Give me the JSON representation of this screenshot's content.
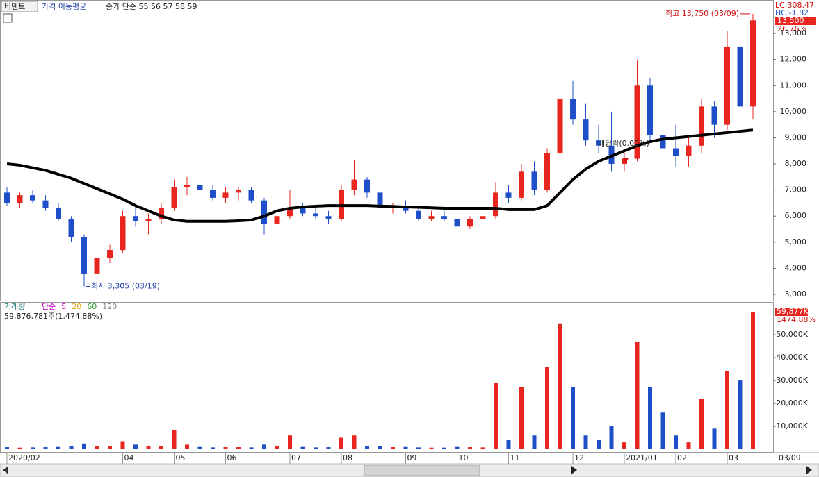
{
  "chart_data": [
    {
      "type": "candlestick",
      "name": "비덴트",
      "overlay_label": "가격 이동평균",
      "ma_label": "종가 단순 55 56 57 58 59",
      "categories": [
        "2020/02",
        null,
        null,
        null,
        null,
        null,
        null,
        null,
        null,
        "04",
        null,
        null,
        null,
        "05",
        null,
        null,
        null,
        "06",
        null,
        null,
        null,
        null,
        "07",
        null,
        null,
        null,
        "08",
        null,
        null,
        null,
        null,
        "09",
        null,
        null,
        null,
        "10",
        null,
        null,
        null,
        "11",
        null,
        null,
        null,
        null,
        "12",
        null,
        null,
        null,
        "2021/01",
        null,
        null,
        null,
        "02",
        null,
        null,
        null,
        "03",
        null,
        null
      ],
      "open": [
        6900,
        6500,
        6800,
        6600,
        6300,
        5900,
        5200,
        3800,
        4400,
        4700,
        6000,
        5800,
        5900,
        6300,
        7100,
        7200,
        7000,
        6700,
        6900,
        7000,
        6600,
        5700,
        6000,
        6300,
        6100,
        6000,
        5900,
        7000,
        7400,
        6900,
        6300,
        6400,
        6200,
        5900,
        6000,
        5900,
        5600,
        5900,
        6000,
        6900,
        6700,
        7700,
        7000,
        8400,
        10500,
        9700,
        8900,
        8700,
        8000,
        8200,
        11000,
        9100,
        8600,
        8300,
        8700,
        10200,
        9500,
        12500,
        10200
      ],
      "high": [
        7100,
        6900,
        7000,
        6800,
        6500,
        6000,
        5300,
        4600,
        4900,
        6200,
        6400,
        6100,
        6500,
        7400,
        7500,
        7400,
        7200,
        7100,
        7100,
        7100,
        6700,
        6200,
        7000,
        6500,
        6300,
        6200,
        7200,
        8150,
        7500,
        7000,
        6500,
        6600,
        6300,
        6200,
        6200,
        6000,
        6000,
        6100,
        7300,
        7200,
        8000,
        8100,
        8600,
        11500,
        11200,
        10300,
        9500,
        10000,
        8400,
        12000,
        11300,
        10300,
        9500,
        9100,
        10500,
        10400,
        13100,
        12800,
        13750
      ],
      "low": [
        6400,
        6300,
        6500,
        6200,
        5800,
        5000,
        3305,
        3600,
        4200,
        4600,
        5600,
        5300,
        5700,
        6200,
        6800,
        6800,
        6600,
        6500,
        6600,
        6500,
        5300,
        5600,
        5900,
        6000,
        5900,
        5700,
        5800,
        6800,
        6700,
        6100,
        6100,
        6100,
        5800,
        5800,
        5800,
        5250,
        5500,
        5800,
        5900,
        6500,
        6600,
        6800,
        6900,
        8300,
        9500,
        8700,
        8400,
        7700,
        7700,
        8100,
        8900,
        8200,
        7900,
        7900,
        8400,
        9000,
        9300,
        9900,
        9700
      ],
      "close": [
        6500,
        6800,
        6600,
        6300,
        5900,
        5200,
        3800,
        4400,
        4700,
        6000,
        5800,
        5900,
        6300,
        7100,
        7200,
        7000,
        6700,
        6900,
        7000,
        6600,
        5700,
        6000,
        6300,
        6100,
        6000,
        5900,
        7000,
        7400,
        6900,
        6300,
        6400,
        6200,
        5900,
        6000,
        5900,
        5600,
        5900,
        6000,
        6900,
        6700,
        7700,
        7000,
        8400,
        10500,
        9700,
        8900,
        8700,
        8000,
        8200,
        11000,
        9100,
        8600,
        8300,
        8700,
        10200,
        9500,
        12500,
        10200,
        13500
      ],
      "ma_values": [
        8000,
        7950,
        7850,
        7750,
        7600,
        7450,
        7250,
        7050,
        6850,
        6650,
        6400,
        6200,
        6000,
        5850,
        5800,
        5800,
        5800,
        5800,
        5820,
        5850,
        6000,
        6200,
        6300,
        6350,
        6380,
        6400,
        6400,
        6400,
        6400,
        6380,
        6370,
        6350,
        6340,
        6320,
        6300,
        6300,
        6300,
        6300,
        6300,
        6250,
        6250,
        6250,
        6400,
        6900,
        7400,
        7800,
        8100,
        8300,
        8500,
        8700,
        8850,
        8950,
        9000,
        9050,
        9100,
        9150,
        9200,
        9250,
        9300
      ],
      "up_color": "#e8251f",
      "down_color": "#1f4fc8",
      "ma_color": "#000000",
      "ylim": [
        2760,
        14280
      ],
      "yticks": [
        {
          "value": 3000,
          "label": "3,000"
        },
        {
          "value": 4000,
          "label": "4,000"
        },
        {
          "value": 5000,
          "label": "5,000"
        },
        {
          "value": 6000,
          "label": "6,000"
        },
        {
          "value": 7000,
          "label": "7,000"
        },
        {
          "value": 8000,
          "label": "8,000"
        },
        {
          "value": 9000,
          "label": "9,000"
        },
        {
          "value": 10000,
          "label": "10,000"
        },
        {
          "value": 11000,
          "label": "11,000"
        },
        {
          "value": 12000,
          "label": "12,000"
        },
        {
          "value": 13000,
          "label": "13,000"
        }
      ],
      "high_label": "최고 13,750 (03/09)",
      "low_label": "최저 3,305 (03/19)",
      "event_label": "배당락(0.00%)",
      "lc_label": "LC:308.47",
      "hc_label": "HC:-1.82",
      "last_label": "13,500",
      "change_label": "26.76%"
    },
    {
      "type": "bar",
      "title": "거래량",
      "volume_text": "59,876,781주(1,474.88%)",
      "ma_legend": [
        {
          "name": "단순",
          "color": "#c000c0"
        },
        {
          "name": "5",
          "color": "#c000c0"
        },
        {
          "name": "20",
          "color": "#e8a000"
        },
        {
          "name": "60",
          "color": "#2a9a2a"
        },
        {
          "name": "120",
          "color": "#888888"
        }
      ],
      "values": [
        900,
        700,
        800,
        900,
        1000,
        1400,
        2500,
        1500,
        1200,
        3500,
        2000,
        1200,
        1500,
        8500,
        2000,
        1000,
        800,
        900,
        900,
        800,
        2000,
        1200,
        6000,
        1000,
        800,
        900,
        5000,
        6000,
        1500,
        1200,
        900,
        1000,
        800,
        700,
        700,
        1000,
        900,
        800,
        29000,
        4000,
        27000,
        6000,
        36000,
        55000,
        27000,
        6000,
        4000,
        10000,
        3000,
        47000,
        27000,
        16000,
        6000,
        3000,
        22000,
        9000,
        34000,
        30000,
        60000
      ],
      "ylim": [
        0,
        64000
      ],
      "yticks": [
        {
          "value": 10000,
          "label": "10,000K"
        },
        {
          "value": 20000,
          "label": "20,000K"
        },
        {
          "value": 30000,
          "label": "30,000K"
        },
        {
          "value": 40000,
          "label": "40,000K"
        },
        {
          "value": 50000,
          "label": "50,000K"
        }
      ],
      "last_label": "59,877K",
      "ratio_label": "1474.88%",
      "x_end_label": "03/09"
    }
  ]
}
